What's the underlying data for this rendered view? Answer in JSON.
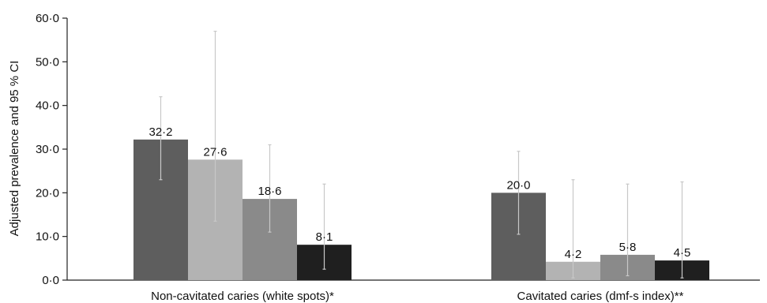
{
  "chart_data": {
    "type": "bar",
    "title": "",
    "ylabel": "Adjusted prevalence and 95 % CI",
    "xlabel": "",
    "ylim": [
      0,
      60
    ],
    "yticks": [
      "0·0",
      "10·0",
      "20·0",
      "30·0",
      "40·0",
      "50·0",
      "60·0"
    ],
    "ytick_values": [
      0,
      10,
      20,
      30,
      40,
      50,
      60
    ],
    "categories": [
      "Non-cavitated caries (white spots)*",
      "Cavitated caries (dmf-s index)**"
    ],
    "series": [
      {
        "color": "#5e5e5e",
        "values": [
          32.2,
          20.0
        ],
        "labels": [
          "32·2",
          "20·0"
        ],
        "ci_low": [
          23.0,
          10.5
        ],
        "ci_high": [
          42.0,
          29.5
        ]
      },
      {
        "color": "#b3b3b3",
        "values": [
          27.6,
          4.2
        ],
        "labels": [
          "27·6",
          "4·2"
        ],
        "ci_low": [
          13.5,
          0.5
        ],
        "ci_high": [
          57.0,
          23.0
        ]
      },
      {
        "color": "#8a8a8a",
        "values": [
          18.6,
          5.8
        ],
        "labels": [
          "18·6",
          "5·8"
        ],
        "ci_low": [
          11.0,
          1.0
        ],
        "ci_high": [
          31.0,
          22.0
        ]
      },
      {
        "color": "#1f1f1f",
        "values": [
          8.1,
          4.5
        ],
        "labels": [
          "8·1",
          "4·5"
        ],
        "ci_low": [
          2.5,
          0.5
        ],
        "ci_high": [
          22.0,
          22.5
        ]
      }
    ],
    "grid": false,
    "legend": "none",
    "errorbar_color": "#c8c8c8"
  }
}
